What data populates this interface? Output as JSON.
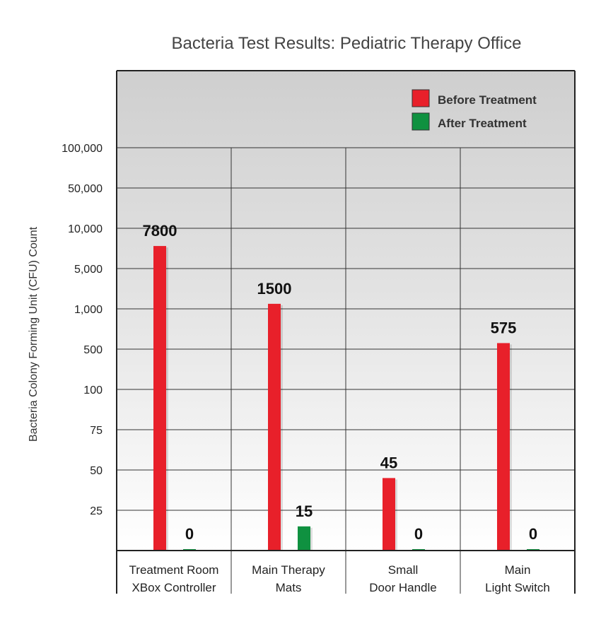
{
  "chart_data": {
    "type": "bar",
    "title": "Bacteria Test Results: Pediatric Therapy Office",
    "xlabel": "",
    "ylabel": "Bacteria Colony Forming Unit (CFU) Count",
    "y_scale": "categorical (non-linear) ticks",
    "y_ticks": [
      "25",
      "50",
      "75",
      "100",
      "500",
      "1,000",
      "5,000",
      "10,000",
      "50,000",
      "100,000"
    ],
    "y_tick_values": [
      25,
      50,
      75,
      100,
      500,
      1000,
      5000,
      10000,
      50000,
      100000
    ],
    "categories": [
      [
        "Treatment Room",
        "XBox Controller"
      ],
      [
        "Main Therapy",
        "Mats"
      ],
      [
        "Small",
        "Door Handle"
      ],
      [
        "Main",
        "Light Switch"
      ]
    ],
    "series": [
      {
        "name": "Before Treatment",
        "color": "#e8202a",
        "values": [
          7800,
          1500,
          45,
          575
        ],
        "labels": [
          "7800",
          "1500",
          "45",
          "575"
        ]
      },
      {
        "name": "After Treatment",
        "color": "#0f9140",
        "values": [
          0,
          15,
          0,
          0
        ],
        "labels": [
          "0",
          "15",
          "0",
          "0"
        ]
      }
    ],
    "legend_position": "top-right",
    "grid": true
  }
}
